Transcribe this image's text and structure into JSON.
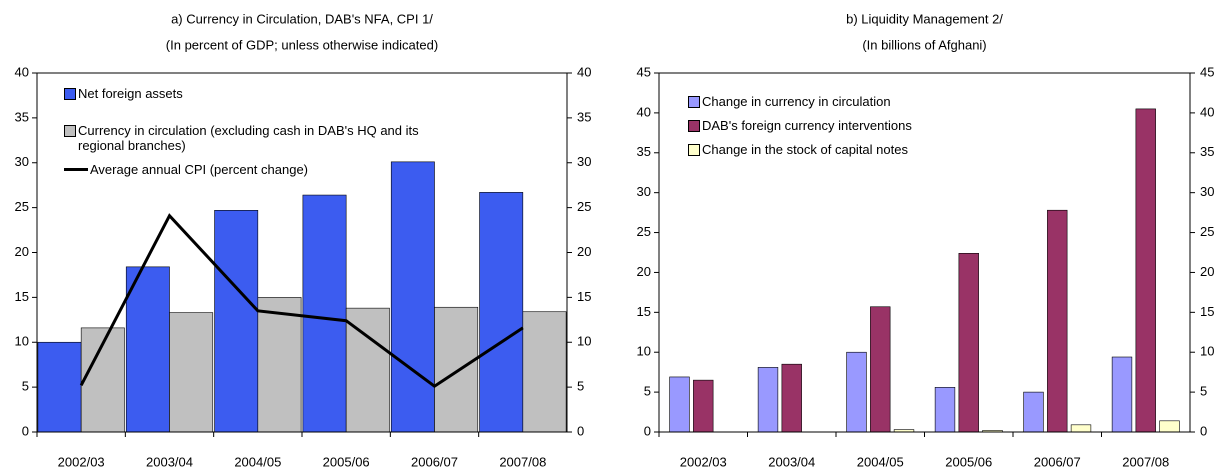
{
  "chart_data": [
    {
      "type": "bar",
      "title": "a) Currency in Circulation, DAB's NFA, CPI 1/",
      "subtitle": "(In percent of GDP; unless otherwise indicated)",
      "categories": [
        "2002/03",
        "2003/04",
        "2004/05",
        "2005/06",
        "2006/07",
        "2007/08"
      ],
      "series": [
        {
          "name": "Net foreign assets",
          "color": "#3c5cf0",
          "values": [
            10.0,
            18.4,
            24.7,
            26.4,
            30.1,
            26.7
          ]
        },
        {
          "name": "Currency in circulation (excluding cash in DAB's HQ and its regional branches)",
          "color": "#c0c0c0",
          "values": [
            11.6,
            13.3,
            15.0,
            13.8,
            13.9,
            13.4
          ]
        },
        {
          "name": "Average annual CPI (percent change)",
          "color": "#000000",
          "type": "line",
          "values": [
            5.2,
            24.1,
            13.5,
            12.4,
            5.1,
            11.6
          ]
        }
      ],
      "ylim": [
        0,
        40
      ],
      "yticks": [
        0,
        5,
        10,
        15,
        20,
        25,
        30,
        35,
        40
      ],
      "y2lim": [
        0,
        40
      ],
      "y2ticks": [
        0,
        5,
        10,
        15,
        20,
        25,
        30,
        35,
        40
      ],
      "legend": "upper left"
    },
    {
      "type": "bar",
      "title": "b) Liquidity Management 2/",
      "subtitle": "(In billions of Afghani)",
      "categories": [
        "2002/03",
        "2003/04",
        "2004/05",
        "2005/06",
        "2006/07",
        "2007/08"
      ],
      "series": [
        {
          "name": "Change in currency in circulation",
          "color": "#9999ff",
          "values": [
            6.9,
            8.1,
            10.0,
            5.6,
            5.0,
            9.4
          ]
        },
        {
          "name": "DAB's foreign currency interventions",
          "color": "#993366",
          "values": [
            6.5,
            8.5,
            15.7,
            22.4,
            27.8,
            40.5
          ]
        },
        {
          "name": "Change in the stock of capital notes",
          "color": "#ffffcc",
          "values": [
            0,
            0,
            0.3,
            0.2,
            0.9,
            1.4
          ]
        }
      ],
      "ylim": [
        0,
        45
      ],
      "yticks": [
        0,
        5,
        10,
        15,
        20,
        25,
        30,
        35,
        40,
        45
      ],
      "y2lim": [
        0,
        45
      ],
      "y2ticks": [
        0,
        5,
        10,
        15,
        20,
        25,
        30,
        35,
        40,
        45
      ],
      "legend": "upper left"
    }
  ]
}
